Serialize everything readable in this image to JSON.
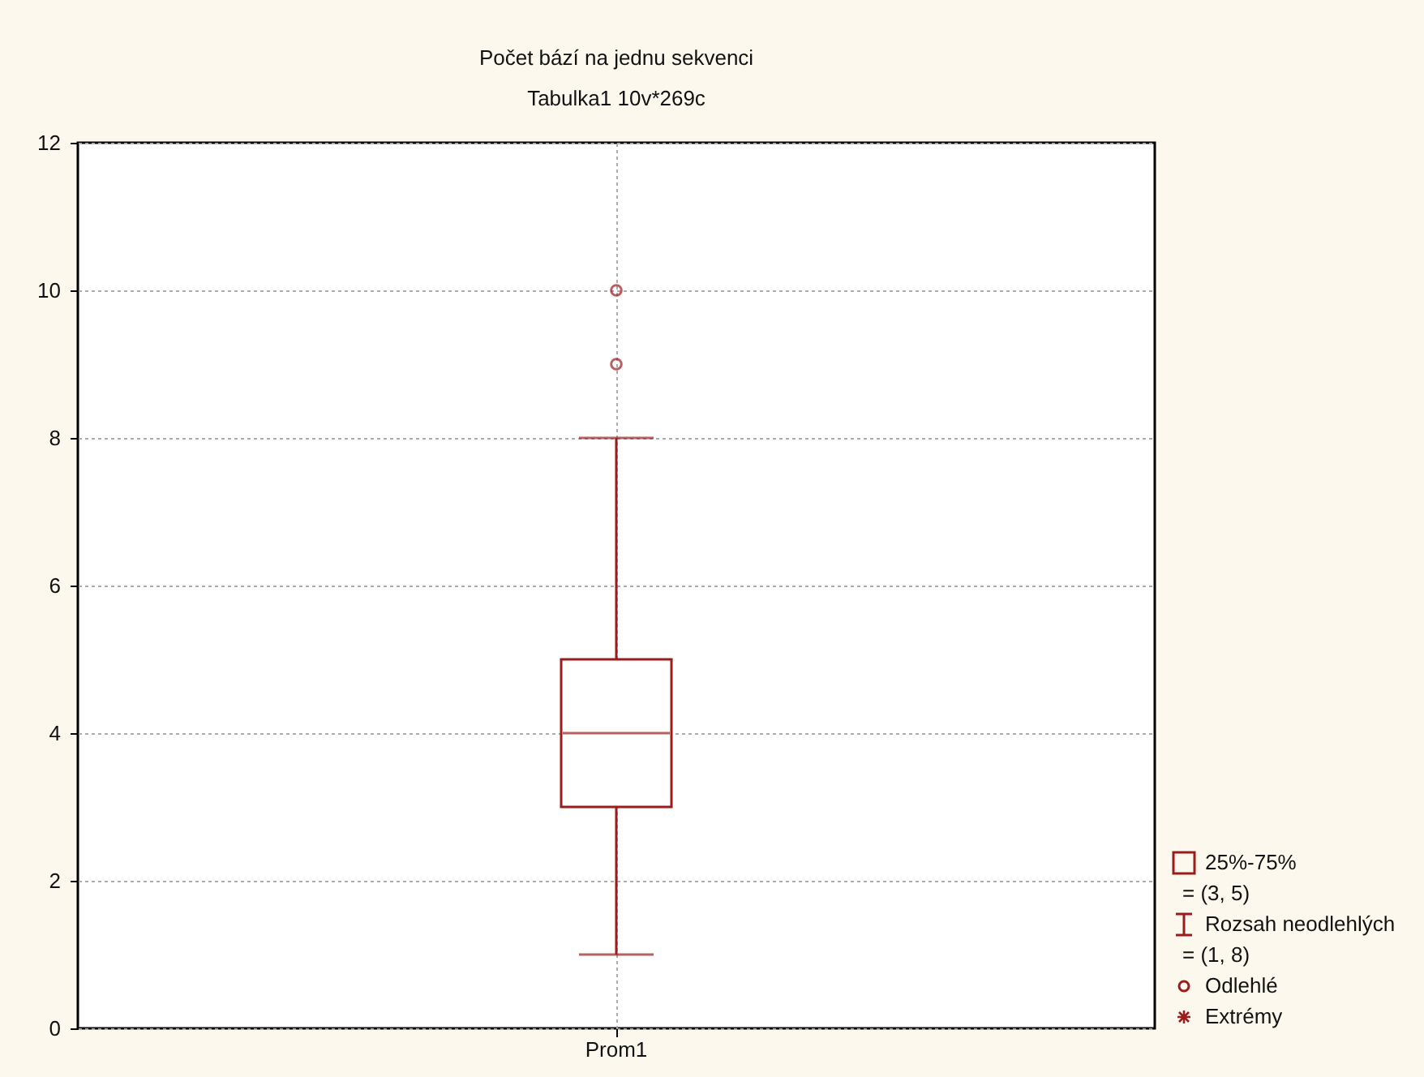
{
  "chart_data": {
    "type": "box",
    "title": "Počet bází na jednu sekvenci",
    "subtitle": "Tabulka1 10v*269c",
    "categories": [
      "Prom1"
    ],
    "boxes": [
      {
        "low": 1,
        "q1": 3,
        "median": 4,
        "q3": 5,
        "high": 8,
        "outliers": [
          9,
          10
        ]
      }
    ],
    "color": "#9b1c1c",
    "ylim": [
      0,
      12
    ],
    "yticks": [
      0,
      2,
      4,
      6,
      8,
      10,
      12
    ],
    "grid": true,
    "annotations": [
      "25%-75%",
      "= (3, 5)",
      "Rozsah neodlehlých",
      "= (1, 8)",
      "Odlehlé",
      "Extrémy"
    ]
  }
}
